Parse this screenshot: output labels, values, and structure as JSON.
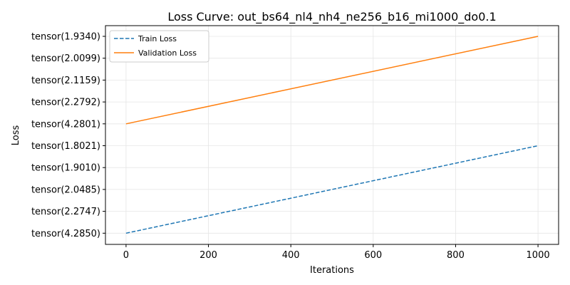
{
  "chart_data": {
    "type": "line",
    "title": "Loss Curve: out_bs64_nl4_nh4_ne256_b16_mi1000_do0.1",
    "xlabel": "Iterations",
    "ylabel": "Loss",
    "xlim": [
      -50,
      1050
    ],
    "x_ticks": [
      0,
      200,
      400,
      600,
      800,
      1000
    ],
    "y_categories": [
      "tensor(4.2850)",
      "tensor(2.2747)",
      "tensor(2.0485)",
      "tensor(1.9010)",
      "tensor(1.8021)",
      "tensor(4.2801)",
      "tensor(2.2792)",
      "tensor(2.1159)",
      "tensor(2.0099)",
      "tensor(1.9340)"
    ],
    "grid": true,
    "legend_position": "top-left",
    "series": [
      {
        "name": "Train Loss",
        "color": "#1f77b4",
        "dash": "dashed",
        "x": [
          0,
          1000
        ],
        "y_index": [
          0,
          4
        ]
      },
      {
        "name": "Validation Loss",
        "color": "#ff7f0e",
        "dash": "solid",
        "x": [
          0,
          1000
        ],
        "y_index": [
          5,
          9
        ]
      }
    ]
  }
}
